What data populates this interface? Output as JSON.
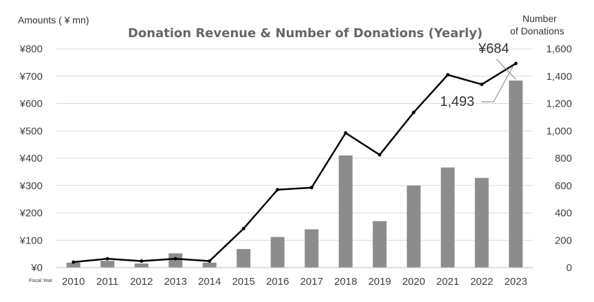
{
  "chart_data": {
    "type": "bar+line",
    "title": "Donation Revenue  &  Number of Donations (Yearly)",
    "xlabel": "Fiscal Year",
    "ylabel_left": "Amounts ( ¥ mn)",
    "ylabel_right_line1": "Number",
    "ylabel_right_line2": "of Donations",
    "categories": [
      "2010",
      "2011",
      "2012",
      "2013",
      "2014",
      "2015",
      "2016",
      "2017",
      "2018",
      "2019",
      "2020",
      "2021",
      "2022",
      "2023"
    ],
    "series": [
      {
        "name": "Donation Revenue",
        "kind": "bar",
        "axis": "left",
        "color": "#8c8c8c",
        "values": [
          18,
          25,
          15,
          52,
          18,
          68,
          112,
          140,
          410,
          170,
          300,
          366,
          328,
          684
        ]
      },
      {
        "name": "Number of Donations",
        "kind": "line",
        "axis": "right",
        "color": "#000000",
        "values": [
          40,
          65,
          48,
          65,
          48,
          285,
          570,
          585,
          985,
          825,
          1135,
          1410,
          1340,
          1493
        ]
      }
    ],
    "ylim_left": [
      0,
      800
    ],
    "ylim_right": [
      0,
      1600
    ],
    "left_ticks": [
      "¥0",
      "¥100",
      "¥200",
      "¥300",
      "¥400",
      "¥500",
      "¥600",
      "¥700",
      "¥800"
    ],
    "right_ticks": [
      "0",
      "200",
      "400",
      "600",
      "800",
      "1,000",
      "1,200",
      "1,400",
      "1,600"
    ],
    "annotations": {
      "bar_last": "¥684",
      "line_last": "1,493"
    },
    "grid": true,
    "grid_color": "#d9d9d9"
  }
}
